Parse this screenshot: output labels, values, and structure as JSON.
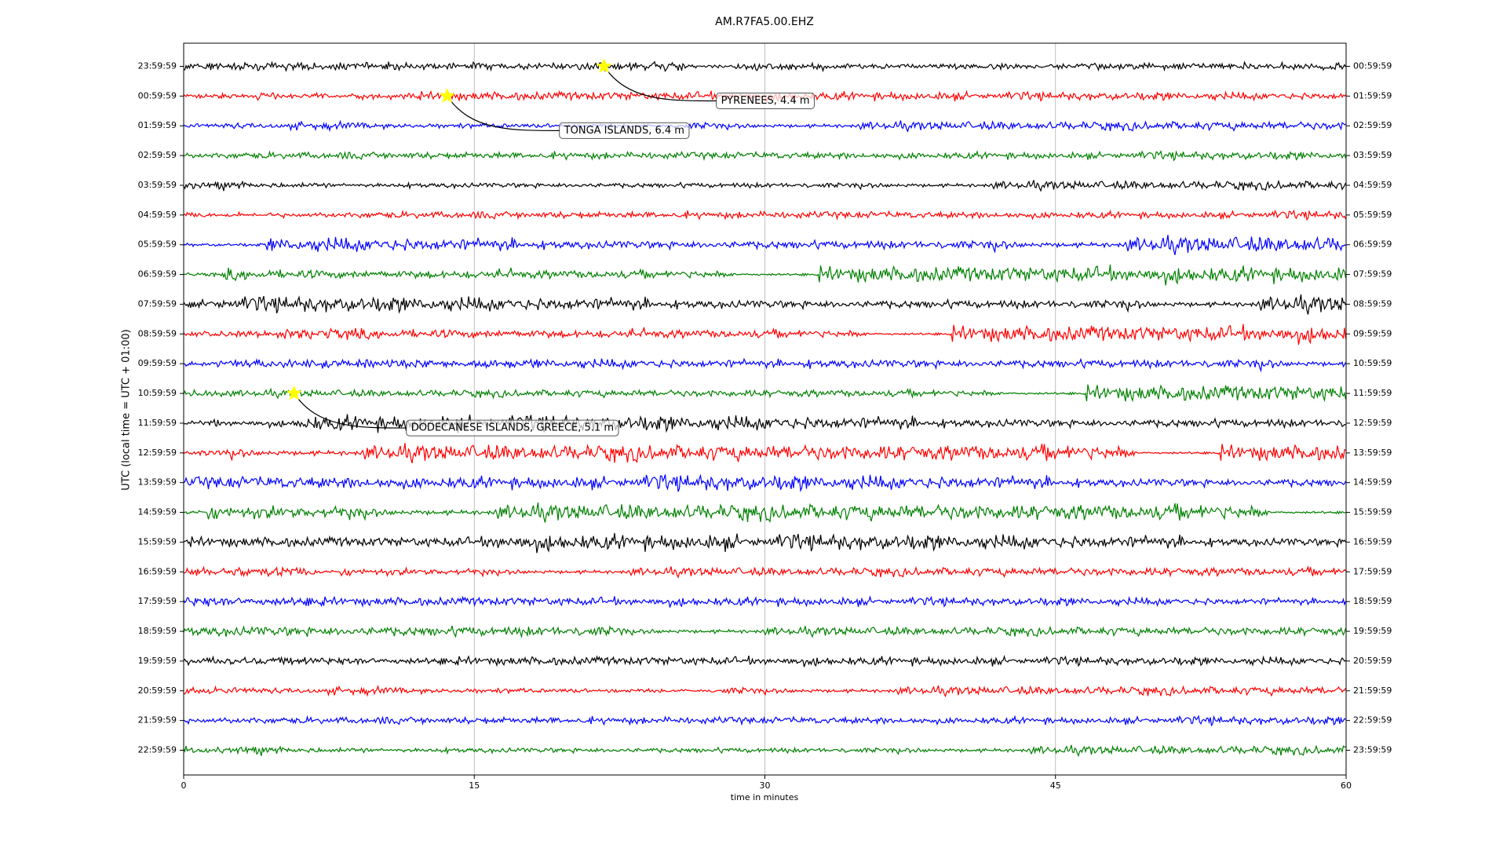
{
  "chart_data": {
    "type": "dayplot",
    "title": "AM.R7FA5.00.EHZ",
    "x_label": "time in minutes",
    "y_label": "UTC (local time = UTC + 01:00)",
    "xlim": [
      0,
      60
    ],
    "xticks": [
      0,
      15,
      30,
      45,
      60
    ],
    "grid": true,
    "colors": [
      "#000000",
      "#ff0000",
      "#0000ff",
      "#008000"
    ],
    "left_labels": [
      "23:59:59",
      "00:59:59",
      "01:59:59",
      "02:59:59",
      "03:59:59",
      "04:59:59",
      "05:59:59",
      "06:59:59",
      "07:59:59",
      "08:59:59",
      "09:59:59",
      "10:59:59",
      "11:59:59",
      "12:59:59",
      "13:59:59",
      "14:59:59",
      "15:59:59",
      "16:59:59",
      "17:59:59",
      "18:59:59",
      "19:59:59",
      "20:59:59",
      "21:59:59",
      "22:59:59"
    ],
    "right_labels": [
      "00:59:59",
      "01:59:59",
      "02:59:59",
      "03:59:59",
      "04:59:59",
      "05:59:59",
      "06:59:59",
      "07:59:59",
      "08:59:59",
      "09:59:59",
      "10:59:59",
      "11:59:59",
      "12:59:59",
      "13:59:59",
      "14:59:59",
      "15:59:59",
      "16:59:59",
      "17:59:59",
      "18:59:59",
      "19:59:59",
      "20:59:59",
      "21:59:59",
      "22:59:59",
      "23:59:59"
    ],
    "events": [
      {
        "label": "PYRENEES, 4.4 m",
        "x": 21.7,
        "row": 0
      },
      {
        "label": "TONGA ISLANDS, 6.4 m",
        "x": 13.6,
        "row": 1
      },
      {
        "label": "DODECANESE ISLANDS, GREECE, 5.1 m",
        "x": 5.7,
        "row": 11
      }
    ]
  }
}
